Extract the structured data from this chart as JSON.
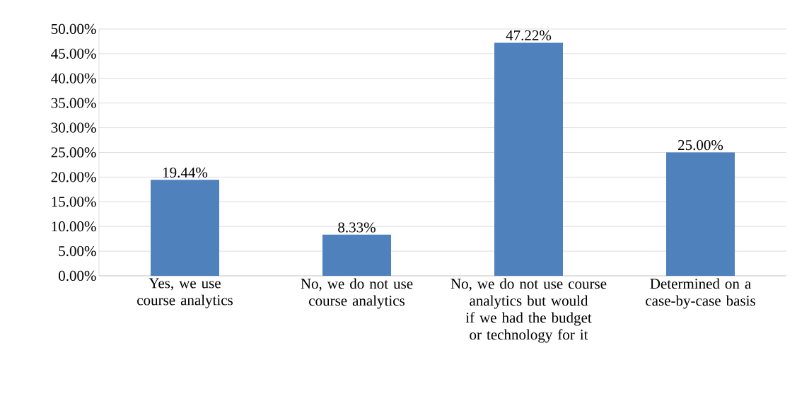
{
  "chart_data": {
    "type": "bar",
    "categories": [
      "Yes, we use course analytics",
      "No, we do not use course analytics",
      "No, we do not use course analytics but would if we had the budget or technology for it",
      "Determined on a case-by-case basis"
    ],
    "values": [
      19.44,
      8.33,
      47.22,
      25.0
    ],
    "value_labels": [
      "19.44%",
      "8.33%",
      "47.22%",
      "25.00%"
    ],
    "color": "#4f81bd",
    "ylim": [
      0,
      50
    ],
    "yticks": [
      {
        "value": 0,
        "label": "0.00%"
      },
      {
        "value": 5,
        "label": "5.00%"
      },
      {
        "value": 10,
        "label": "10.00%"
      },
      {
        "value": 15,
        "label": "15.00%"
      },
      {
        "value": 20,
        "label": "20.00%"
      },
      {
        "value": 25,
        "label": "25.00%"
      },
      {
        "value": 30,
        "label": "30.00%"
      },
      {
        "value": 35,
        "label": "35.00%"
      },
      {
        "value": 40,
        "label": "40.00%"
      },
      {
        "value": 45,
        "label": "45.00%"
      },
      {
        "value": 50,
        "label": "50.00%"
      }
    ],
    "grid": "y"
  }
}
